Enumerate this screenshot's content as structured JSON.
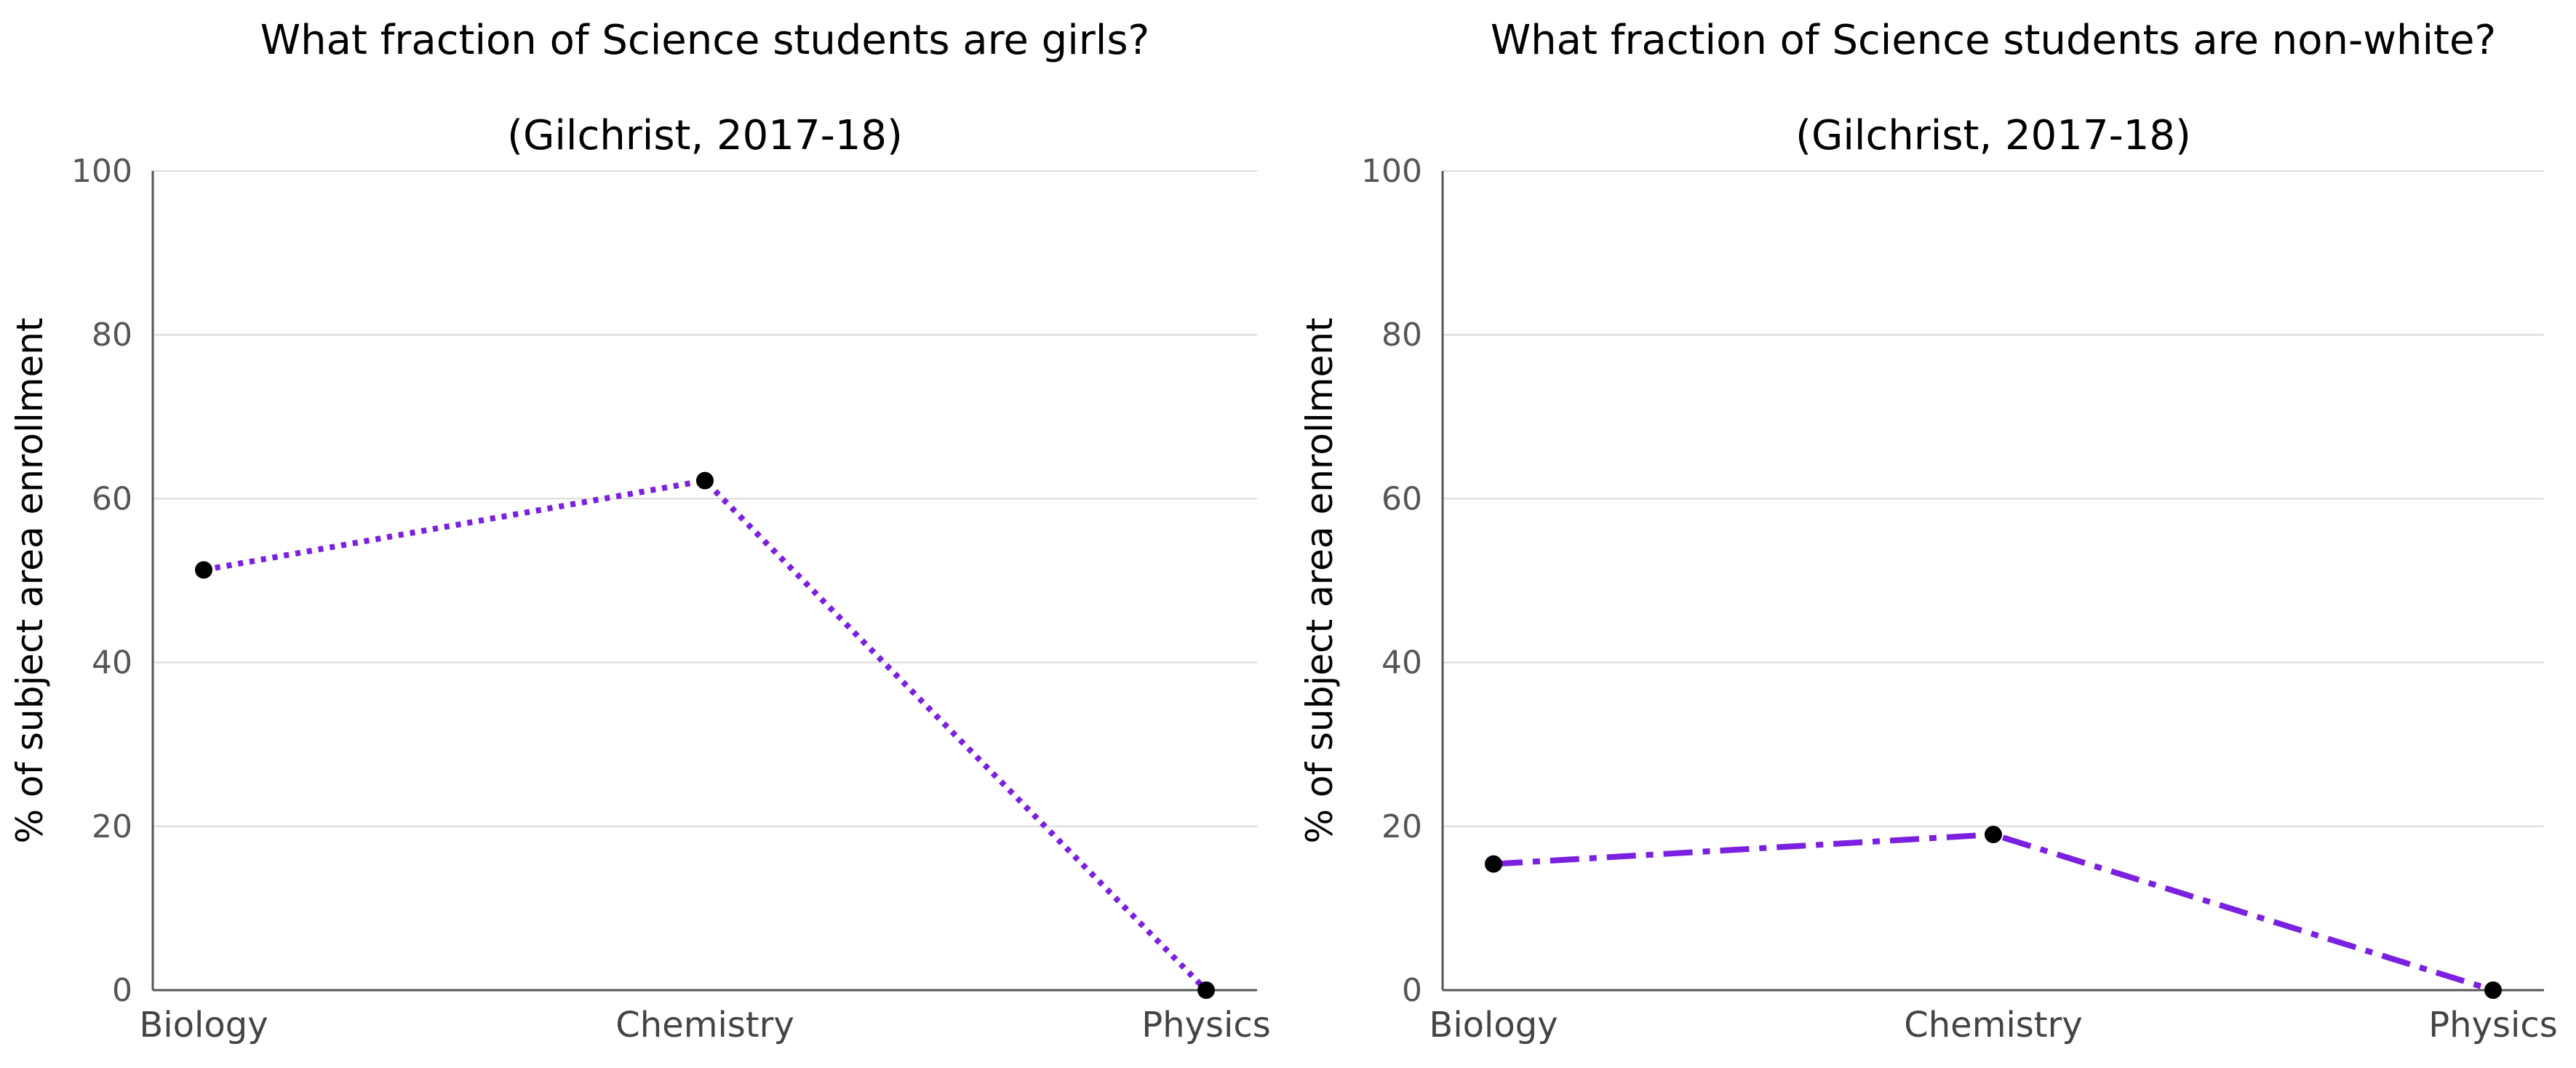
{
  "chart_data": [
    {
      "type": "line",
      "title": "What fraction of Science students are girls?",
      "subtitle": "(Gilchrist, 2017-18)",
      "xlabel": "",
      "ylabel": "% of subject area enrollment",
      "categories": [
        "Biology",
        "Chemistry",
        "Physics"
      ],
      "series": [
        {
          "values": [
            51.3,
            62.2,
            0
          ],
          "color": "#7b1fe0",
          "line_style": "dotted",
          "marker_color": "#000000"
        }
      ],
      "ylim": [
        0,
        100
      ],
      "yticks": [
        0,
        20,
        40,
        60,
        80,
        100
      ],
      "grid": true
    },
    {
      "type": "line",
      "title": "What fraction of Science students are non-white?",
      "subtitle": "(Gilchrist, 2017-18)",
      "xlabel": "",
      "ylabel": "% of subject area enrollment",
      "categories": [
        "Biology",
        "Chemistry",
        "Physics"
      ],
      "series": [
        {
          "values": [
            15.4,
            19.0,
            0
          ],
          "color": "#7b1fe0",
          "line_style": "dashdot",
          "marker_color": "#000000"
        }
      ],
      "ylim": [
        0,
        100
      ],
      "yticks": [
        0,
        20,
        40,
        60,
        80,
        100
      ],
      "grid": true
    }
  ]
}
